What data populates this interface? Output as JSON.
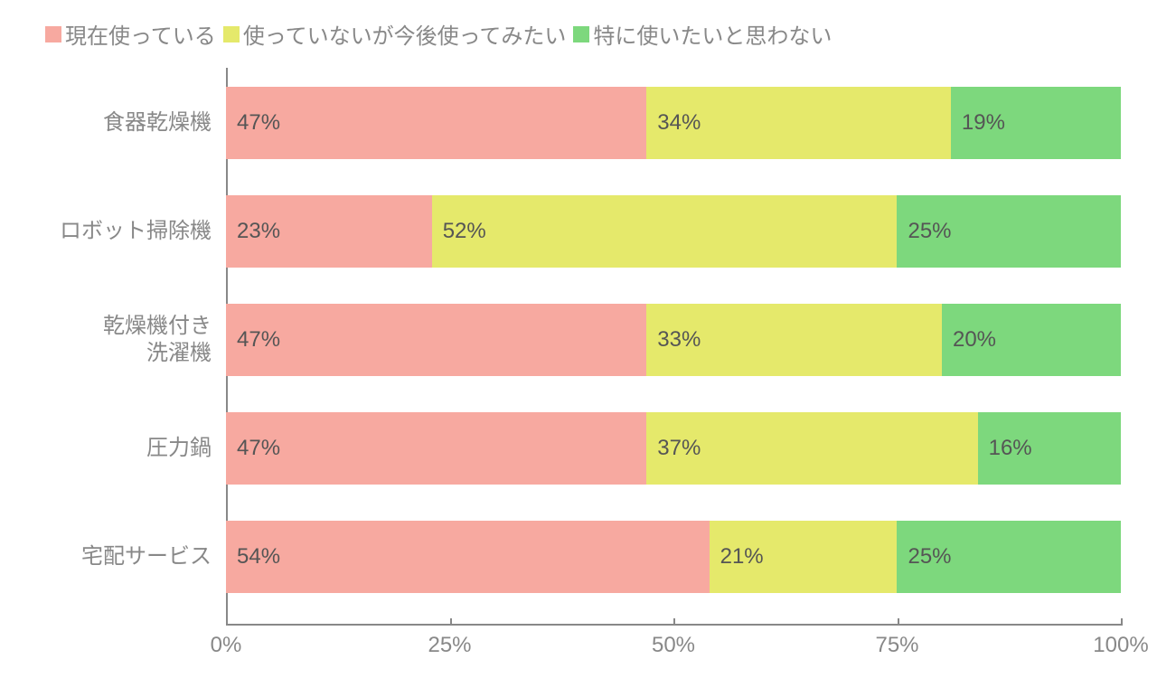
{
  "chart": {
    "type": "stacked-bar-horizontal",
    "legend": [
      {
        "label": "現在使っている",
        "color": "#f7a9a0"
      },
      {
        "label": "使っていないが今後使ってみたい",
        "color": "#e5e96b"
      },
      {
        "label": "特に使いたいと思わない",
        "color": "#7dd87d"
      }
    ],
    "categories": [
      {
        "label": "食器乾燥機",
        "values": [
          47,
          34,
          19
        ]
      },
      {
        "label": "ロボット掃除機",
        "values": [
          23,
          52,
          25
        ]
      },
      {
        "label": "乾燥機付き\n洗濯機",
        "values": [
          47,
          33,
          20
        ]
      },
      {
        "label": "圧力鍋",
        "values": [
          47,
          37,
          16
        ]
      },
      {
        "label": "宅配サービス",
        "values": [
          54,
          21,
          25
        ]
      }
    ],
    "xaxis": {
      "ticks": [
        0,
        25,
        50,
        75,
        100
      ],
      "labels": [
        "0%",
        "25%",
        "50%",
        "75%",
        "100%"
      ]
    },
    "colors": {
      "axis": "#888888",
      "text": "#888888",
      "value_text": "#555555",
      "background": "#ffffff"
    },
    "fontsize": {
      "legend": 24,
      "label": 24,
      "value": 24,
      "tick": 24
    }
  }
}
